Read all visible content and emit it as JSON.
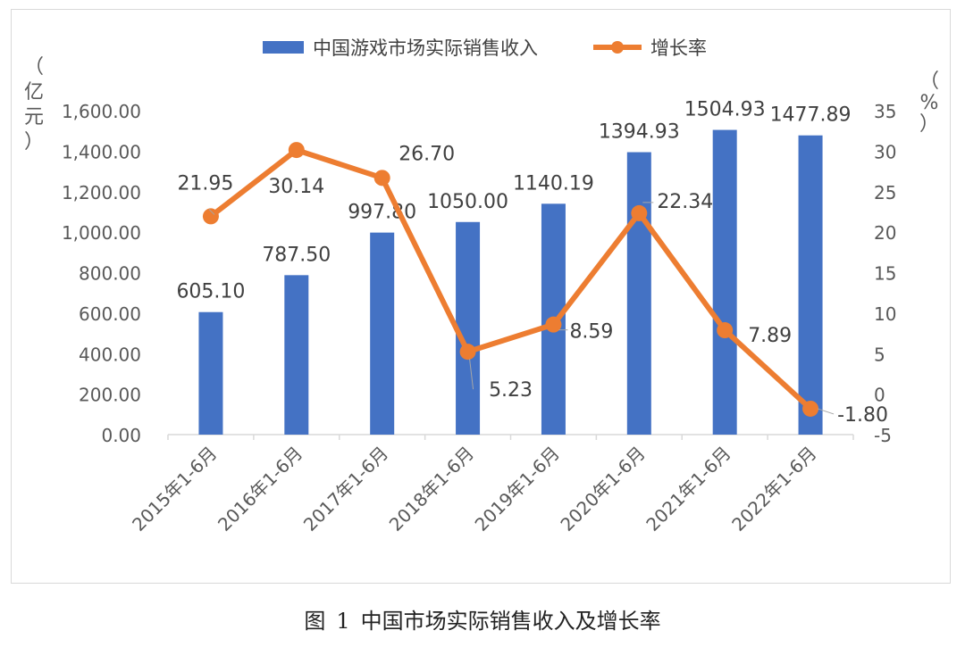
{
  "caption": {
    "prefix": "图",
    "number": "1",
    "text": "中国市场实际销售收入及增长率"
  },
  "chart_data": {
    "type": "bar+line",
    "categories": [
      "2015年1-6月",
      "2016年1-6月",
      "2017年1-6月",
      "2018年1-6月",
      "2019年1-6月",
      "2020年1-6月",
      "2021年1-6月",
      "2022年1-6月"
    ],
    "series": [
      {
        "name": "中国游戏市场实际销售收入",
        "type": "bar",
        "axis": "left",
        "color": "#4472C4",
        "values": [
          605.1,
          787.5,
          997.8,
          1050.0,
          1140.19,
          1394.93,
          1504.93,
          1477.89
        ],
        "labels": [
          "605.10",
          "787.50",
          "997.80",
          "1050.00",
          "1140.19",
          "1394.93",
          "1504.93",
          "1477.89"
        ]
      },
      {
        "name": "增长率",
        "type": "line",
        "axis": "right",
        "color": "#ED7D31",
        "values": [
          21.95,
          30.14,
          26.7,
          5.23,
          8.59,
          22.34,
          7.89,
          -1.8
        ],
        "labels": [
          "21.95",
          "30.14",
          "26.70",
          "5.23",
          "8.59",
          "22.34",
          "7.89",
          "-1.80"
        ]
      }
    ],
    "y_left": {
      "label_chars": [
        "（",
        "亿",
        "元",
        "）"
      ],
      "range": [
        0,
        1600
      ],
      "ticks": [
        "0.00",
        "200.00",
        "400.00",
        "600.00",
        "800.00",
        "1,000.00",
        "1,200.00",
        "1,400.00",
        "1,600.00"
      ]
    },
    "y_right": {
      "label_chars": [
        "（",
        "%",
        "）"
      ],
      "range": [
        -5,
        35
      ],
      "ticks": [
        "-5",
        "0",
        "5",
        "10",
        "15",
        "20",
        "25",
        "30",
        "35"
      ]
    },
    "grid": false,
    "legend_position": "top-center"
  }
}
